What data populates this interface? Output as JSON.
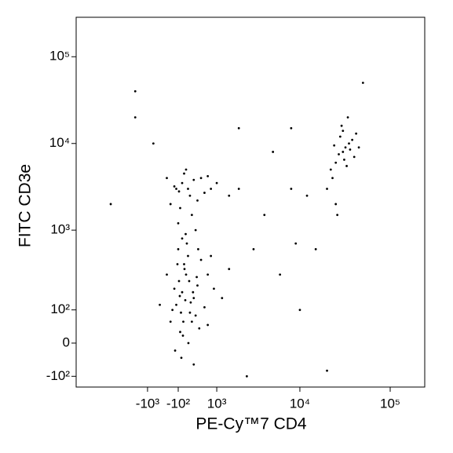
{
  "chart_data": {
    "type": "scatter",
    "x_label": "PE-Cy™7 CD4",
    "y_label": "FITC CD3e",
    "xscale": "biexponential",
    "yscale": "biexponential",
    "xlim": [
      -7400,
      241000
    ],
    "ylim": [
      -145,
      285000
    ],
    "xticks": [
      {
        "value": -1000,
        "label": "-10³"
      },
      {
        "value": -100,
        "label": "-10²"
      },
      {
        "value": 1000,
        "label": "10³"
      },
      {
        "value": 10000,
        "label": "10⁴"
      },
      {
        "value": 100000,
        "label": "10⁵"
      }
    ],
    "yticks": [
      {
        "value": -100,
        "label": "-10²"
      },
      0,
      {
        "value": 100,
        "label": "10²"
      },
      {
        "value": 1000,
        "label": "10³"
      },
      {
        "value": 10000,
        "label": "10⁴"
      },
      {
        "value": 100000,
        "label": "10⁵"
      }
    ],
    "color": "#000000",
    "x": [
      -150,
      -80,
      0,
      100,
      200,
      300,
      -300,
      50,
      400,
      600,
      -50,
      150,
      250,
      -200,
      700,
      80,
      350,
      -100,
      500,
      20,
      -400,
      900,
      120,
      -250,
      450,
      180,
      -30,
      60,
      280,
      800,
      -120,
      220,
      30,
      380,
      -60,
      1200,
      1500,
      -600,
      160,
      -20,
      300,
      -180,
      700,
      90,
      420,
      -150,
      0,
      200,
      500,
      -300,
      100,
      800,
      -80,
      300,
      1500,
      50,
      -200,
      400,
      700,
      -50,
      250,
      1000,
      -400,
      150,
      600,
      2000,
      -100,
      350,
      0,
      30000,
      25000,
      35000,
      28000,
      40000,
      32000,
      22000,
      30000,
      45000,
      27000,
      33000,
      38000,
      24000,
      31000,
      36000,
      29000,
      20000,
      25000,
      34000,
      42000,
      26000,
      23000,
      -1500,
      -3000,
      2000,
      5000,
      8000,
      4000,
      12000,
      6000,
      15000,
      3000,
      10000,
      -1500,
      8000,
      20000,
      50000,
      -800,
      2500,
      9000
    ],
    "values": [
      120,
      250,
      180,
      300,
      90,
      150,
      60,
      400,
      220,
      110,
      30,
      500,
      60,
      200,
      300,
      140,
      80,
      600,
      450,
      20,
      300,
      200,
      700,
      100,
      40,
      250,
      90,
      350,
      180,
      500,
      400,
      130,
      60,
      280,
      160,
      150,
      350,
      120,
      0,
      -40,
      -60,
      -20,
      50,
      900,
      600,
      3000,
      3500,
      2500,
      4000,
      2000,
      5000,
      3000,
      2800,
      3800,
      2500,
      4500,
      3200,
      2200,
      4200,
      1800,
      1500,
      3500,
      4000,
      3000,
      2700,
      3000,
      1200,
      1000,
      800,
      8000,
      6000,
      10000,
      12000,
      7000,
      9000,
      5000,
      14000,
      9000,
      7500,
      5500,
      11000,
      9500,
      6500,
      8500,
      16000,
      3000,
      2000,
      20000,
      13000,
      1500,
      4000,
      20000,
      2000,
      15000,
      8000,
      3000,
      1500,
      2500,
      300,
      600,
      600,
      100,
      40000,
      15000,
      -80,
      50000,
      10000,
      -100,
      700
    ]
  }
}
